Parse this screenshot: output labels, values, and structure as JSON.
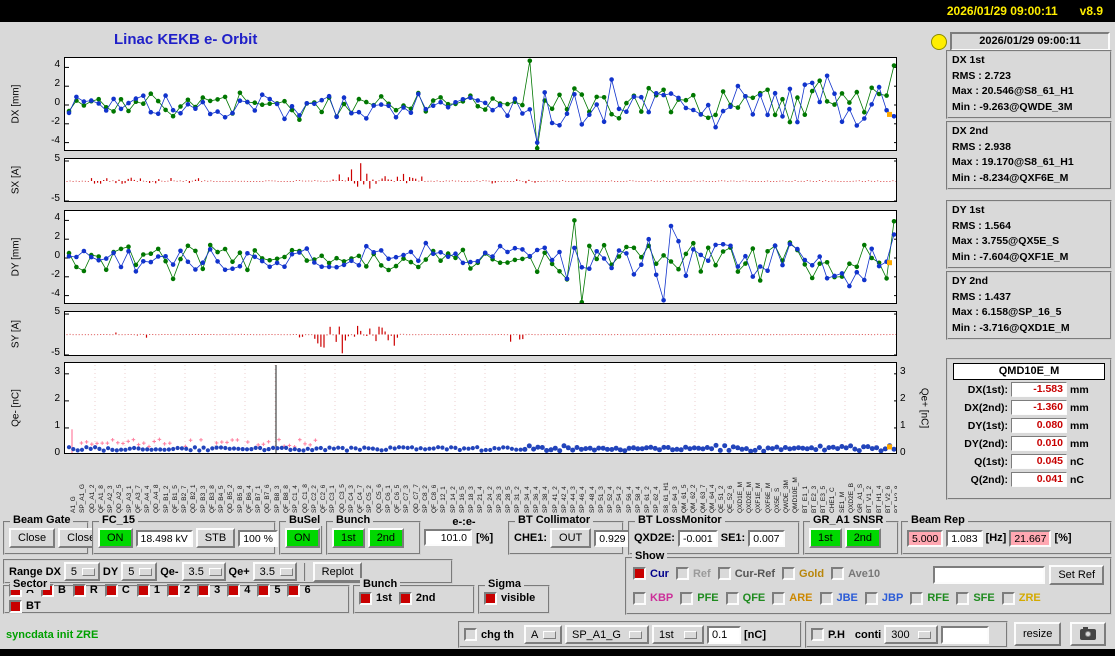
{
  "titlebar": {
    "clock": "2026/01/29 09:00:11",
    "version": "v8.9"
  },
  "header": {
    "title": "Linac KEKB e- Orbit",
    "timestamp": "2026/01/29 09:00:11"
  },
  "stats": [
    {
      "title": "DX 1st",
      "lines": [
        "RMS : 2.723",
        "Max : 20.546@S8_61_H1",
        "Min : -9.263@QWDE_3M"
      ]
    },
    {
      "title": "DX 2nd",
      "lines": [
        "RMS : 2.938",
        "Max : 19.170@S8_61_H1",
        "Min : -8.234@QXF6E_M"
      ]
    },
    {
      "title": "DY 1st",
      "lines": [
        "RMS : 1.564",
        "Max : 3.755@QX5E_S",
        "Min : -7.604@QXF1E_M"
      ]
    },
    {
      "title": "DY 2nd",
      "lines": [
        "RMS : 1.437",
        "Max : 6.158@SP_16_5",
        "Min : -3.716@QXD1E_M"
      ]
    }
  ],
  "monitor": {
    "title": "QMD10E_M",
    "rows": [
      {
        "label": "DX(1st):",
        "value": "-1.583",
        "unit": "mm"
      },
      {
        "label": "DX(2nd):",
        "value": "-1.360",
        "unit": "mm"
      },
      {
        "label": "DY(1st):",
        "value": "0.080",
        "unit": "mm"
      },
      {
        "label": "DY(2nd):",
        "value": "0.010",
        "unit": "mm"
      },
      {
        "label": "Q(1st):",
        "value": "0.045",
        "unit": "nC"
      },
      {
        "label": "Q(2nd):",
        "value": "0.041",
        "unit": "nC"
      }
    ]
  },
  "plots": {
    "dx": {
      "ylabel": "DX [mm]",
      "ticks": [
        "4",
        "2",
        "0",
        "-2",
        "-4"
      ],
      "ylim": [
        -5,
        5
      ]
    },
    "sx": {
      "ylabel": "SX [A]",
      "ticks": [
        "5",
        "-5"
      ],
      "ylim": [
        -5.5,
        5.5
      ]
    },
    "dy": {
      "ylabel": "DY [mm]",
      "ticks": [
        "4",
        "2",
        "0",
        "-2",
        "-4"
      ],
      "ylim": [
        -5,
        5
      ]
    },
    "sy": {
      "ylabel": "SY [A]",
      "ticks": [
        "5",
        "-5"
      ],
      "ylim": [
        -5.5,
        5.5
      ]
    },
    "qe": {
      "ylabel": "Qe- [nC]",
      "ylabel_right": "Qe+ [nC]",
      "ticks": [
        "3",
        "2",
        "1",
        "0"
      ],
      "ylim": [
        0,
        3.4
      ]
    },
    "colors": {
      "first_bunch": "#007700",
      "second_bunch": "#1133cc",
      "steering": "#cc0000",
      "charge": "#2244bb",
      "charge_minor": "#ff7f9f",
      "latest": "#ffaa00"
    },
    "x_labels": [
      "A1_G",
      "SP_A1_G",
      "QD_A1_2",
      "QF_A1_8",
      "SP_A2_3",
      "QD_A2_5",
      "SP_A3_1",
      "QF_A3_7",
      "SP_A4_4",
      "QD_A4_8",
      "SP_B1_2",
      "QF_B1_5",
      "SP_B2_7",
      "QD_B2_1",
      "SP_B3_3",
      "QF_B3_8",
      "SP_B4_5",
      "QD_B5_2",
      "SP_B5_8",
      "QF_B6_4",
      "SP_B7_1",
      "QD_B7_6",
      "SP_B8_3",
      "QF_B8_8",
      "SP_C1_4",
      "QD_C1_8",
      "SP_C2_2",
      "QF_C2_6",
      "SP_C3_1",
      "QD_C3_5",
      "SP_C4_3",
      "QF_C4_7",
      "SP_C5_2",
      "QD_C5_6",
      "SP_C6_1",
      "QF_C6_5",
      "SP_C7_3",
      "QD_C7_7",
      "SP_C8_2",
      "QF_C8_6",
      "SP_12_1",
      "SP_14_2",
      "SP_16_5",
      "SP_18_3",
      "SP_21_4",
      "SP_24_2",
      "SP_26_3",
      "SP_28_5",
      "SP_31_2",
      "SP_34_4",
      "SP_36_4",
      "SP_38_4",
      "SP_41_2",
      "SP_42_4",
      "SP_44_3",
      "SP_46_4",
      "SP_48_4",
      "SP_51_3",
      "SP_52_4",
      "SP_54_2",
      "SP_56_4",
      "SP_58_4",
      "SP_61_2",
      "SP_62_4",
      "S8_61_H1",
      "SP_64_3",
      "QM_61_5",
      "QM_62_2",
      "QM_63_7",
      "QM_64_4",
      "QE_51_2",
      "QE_52_6",
      "QXD1E_M",
      "QXD2E_M",
      "QXF1E_M",
      "QXF6E_M",
      "QX5E_S",
      "QWDE_3M",
      "QMD10E_M",
      "BT_E1_1",
      "BT_E2_3",
      "BT_E3_5",
      "CHE1_C",
      "SE1_M",
      "QXD2E_B",
      "GR_A1_S",
      "BT_V1_2",
      "BT_H1_4",
      "BT_V2_6",
      "BT_H2_8"
    ]
  },
  "controls": {
    "beam_gate": {
      "label": "Beam Gate",
      "btn1": "Close",
      "btn2": "Close"
    },
    "fc15": {
      "label": "FC_15",
      "on": "ON",
      "kv": "18.498 kV",
      "stb": "STB",
      "pct": "100 %"
    },
    "busel": {
      "label": "BuSel",
      "on": "ON"
    },
    "bunch_top": {
      "label": "Bunch",
      "b1": "1st",
      "b2": "2nd"
    },
    "ee": {
      "label": "e-:e-",
      "value": "101.0",
      "unit": "[%]"
    },
    "bt_collimator": {
      "label": "BT Collimator",
      "che1_label": "CHE1:",
      "che1_btn": "OUT",
      "value": "0.929"
    },
    "bt_lossmonitor": {
      "label": "BT LossMonitor",
      "qxd2e_label": "QXD2E:",
      "qxd2e_value": "-0.001",
      "se1_label": "SE1:",
      "se1_value": "0.007"
    },
    "gr_snsr": {
      "label": "GR_A1 SNSR",
      "b1": "1st",
      "b2": "2nd"
    },
    "beam_rep": {
      "label": "Beam Rep",
      "rep1": "5.000",
      "rep2": "1.083",
      "hz": "[Hz]",
      "rep3": "21.667",
      "pct": "[%]"
    },
    "range": {
      "label": "Range",
      "items": [
        {
          "name": "DX",
          "value": "5"
        },
        {
          "name": "DY",
          "value": "5"
        },
        {
          "name": "Qe-",
          "value": "3.5"
        },
        {
          "name": "Qe+",
          "value": "3.5"
        }
      ],
      "replot": "Replot"
    },
    "sector": {
      "label": "Sector",
      "items": [
        {
          "text": "A",
          "checked": true
        },
        {
          "text": "B",
          "checked": true
        },
        {
          "text": "R",
          "checked": true
        },
        {
          "text": "C",
          "checked": true
        },
        {
          "text": "1",
          "checked": true
        },
        {
          "text": "2",
          "checked": true
        },
        {
          "text": "3",
          "checked": true
        },
        {
          "text": "4",
          "checked": true
        },
        {
          "text": "5",
          "checked": true
        },
        {
          "text": "6",
          "checked": true
        },
        {
          "text": "BT",
          "checked": true
        }
      ]
    },
    "bunch_sel": {
      "label": "Bunch",
      "items": [
        {
          "text": "1st",
          "checked": true
        },
        {
          "text": "2nd",
          "checked": true
        }
      ]
    },
    "sigma": {
      "label": "Sigma",
      "items": [
        {
          "text": "visible",
          "checked": true
        }
      ]
    },
    "show": {
      "label": "Show",
      "row1": [
        {
          "text": "Cur",
          "color": "#00008b",
          "checked": true
        },
        {
          "text": "Ref",
          "color": "#9a9a9a",
          "checked": false
        },
        {
          "text": "Cur-Ref",
          "color": "#555555",
          "checked": false
        },
        {
          "text": "Gold",
          "color": "#b8860b",
          "checked": false
        },
        {
          "text": "Ave10",
          "color": "#787878",
          "checked": false
        }
      ],
      "set_ref": "Set Ref",
      "row2": [
        {
          "text": "KBP",
          "color": "#cc2f99",
          "checked": false
        },
        {
          "text": "PFE",
          "color": "#1f8b1f",
          "checked": false
        },
        {
          "text": "QFE",
          "color": "#1f8b1f",
          "checked": false
        },
        {
          "text": "ARE",
          "color": "#cc8800",
          "checked": false
        },
        {
          "text": "JBE",
          "color": "#2a5bd7",
          "checked": false
        },
        {
          "text": "JBP",
          "color": "#2a5bd7",
          "checked": false
        },
        {
          "text": "RFE",
          "color": "#1f8b1f",
          "checked": false
        },
        {
          "text": "SFE",
          "color": "#1f8b1f",
          "checked": false
        },
        {
          "text": "ZRE",
          "color": "#d4aa00",
          "checked": false
        }
      ]
    }
  },
  "statusbar": {
    "message": "syncdata init ZRE",
    "chg_th": "chg th",
    "sel_device": "A",
    "sel_bpm": "SP_A1_G",
    "sel_bunch": "1st",
    "threshold": "0.1",
    "threshold_unit": "[nC]",
    "ph": "P.H",
    "conti": "conti",
    "sel_points": "300",
    "resize": "resize"
  }
}
